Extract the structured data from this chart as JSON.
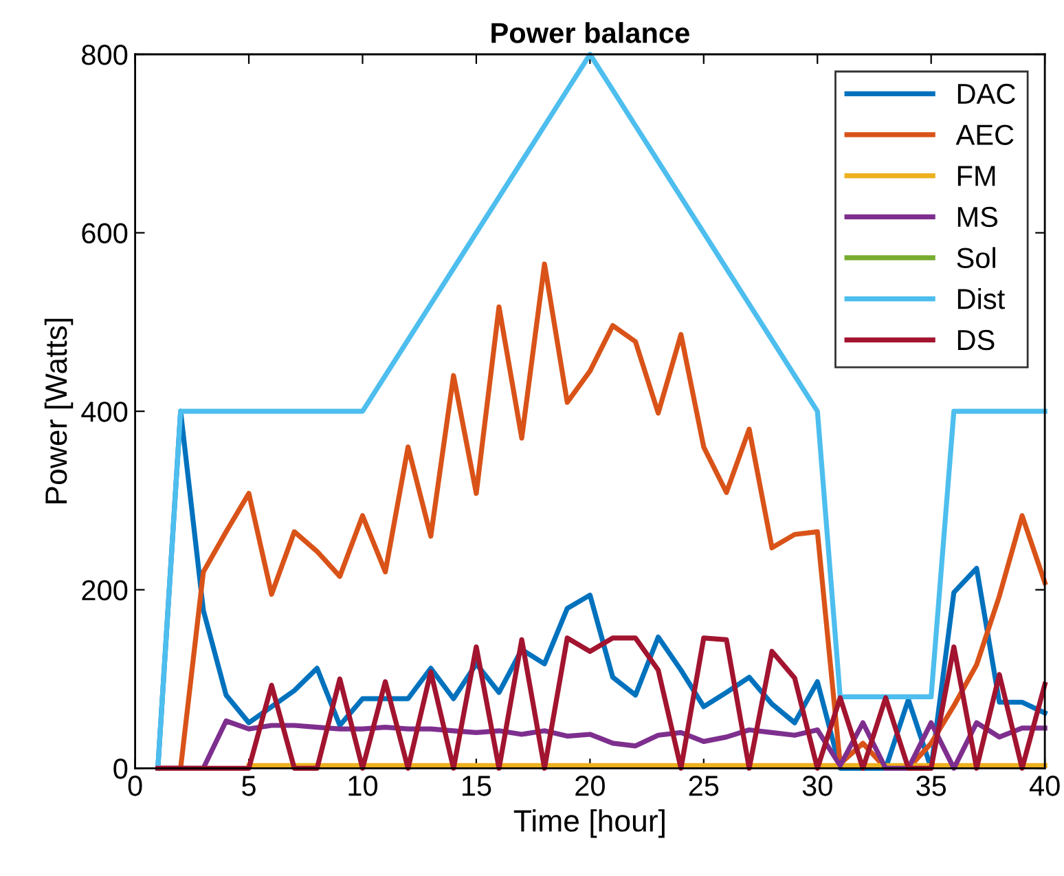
{
  "chart_data": {
    "type": "line",
    "title": "Power balance",
    "xlabel": "Time [hour]",
    "ylabel": "Power [Watts]",
    "x": [
      1,
      2,
      3,
      4,
      5,
      6,
      7,
      8,
      9,
      10,
      11,
      12,
      13,
      14,
      15,
      16,
      17,
      18,
      19,
      20,
      21,
      22,
      23,
      24,
      25,
      26,
      27,
      28,
      29,
      30,
      31,
      32,
      33,
      34,
      35,
      36,
      37,
      38,
      39,
      40
    ],
    "series": [
      {
        "name": "DAC",
        "color": "#0072bd",
        "values": [
          0,
          400,
          177,
          82,
          51,
          69,
          87,
          112,
          48,
          78,
          78,
          78,
          112,
          78,
          117,
          85,
          133,
          117,
          179,
          194,
          102,
          82,
          147,
          110,
          69,
          85,
          102,
          72,
          51,
          97,
          0,
          0,
          0,
          77,
          0,
          197,
          224,
          74,
          74,
          62
        ]
      },
      {
        "name": "AEC",
        "color": "#d95319",
        "values": [
          0,
          0,
          220,
          265,
          308,
          195,
          265,
          243,
          215,
          283,
          220,
          360,
          260,
          440,
          308,
          517,
          370,
          565,
          410,
          445,
          496,
          478,
          398,
          486,
          360,
          309,
          380,
          247,
          262,
          265,
          5,
          28,
          0,
          0,
          28,
          70,
          116,
          193,
          283,
          208
        ]
      },
      {
        "name": "FM",
        "color": "#edb120",
        "values": [
          null,
          null,
          null,
          null,
          3,
          3,
          3,
          3,
          3,
          3,
          3,
          3,
          3,
          3,
          3,
          3,
          3,
          3,
          3,
          3,
          3,
          3,
          3,
          3,
          3,
          3,
          3,
          3,
          3,
          3,
          3,
          3,
          3,
          3,
          3,
          3,
          3,
          3,
          3,
          3
        ]
      },
      {
        "name": "MS",
        "color": "#7e2f8e",
        "values": [
          0,
          0,
          0,
          53,
          44,
          48,
          48,
          46,
          44,
          44,
          46,
          44,
          44,
          42,
          40,
          42,
          38,
          42,
          36,
          38,
          28,
          25,
          37,
          40,
          30,
          35,
          43,
          40,
          37,
          43,
          3,
          51,
          0,
          0,
          51,
          0,
          51,
          35,
          45,
          45
        ]
      },
      {
        "name": "Sol",
        "color": "#77ac30",
        "values": [
          null,
          null,
          null,
          null,
          null,
          null,
          null,
          null,
          null,
          null,
          null,
          null,
          null,
          null,
          null,
          null,
          null,
          null,
          null,
          null,
          null,
          null,
          null,
          null,
          null,
          null,
          null,
          null,
          null,
          null,
          null,
          null,
          null,
          null,
          null,
          null,
          null,
          null,
          null,
          null
        ]
      },
      {
        "name": "Dist",
        "color": "#4dbeee",
        "values": [
          0,
          400,
          400,
          400,
          400,
          400,
          400,
          400,
          400,
          400,
          440,
          480,
          520,
          560,
          600,
          640,
          680,
          720,
          760,
          800,
          760,
          720,
          680,
          640,
          600,
          560,
          520,
          480,
          440,
          400,
          80,
          80,
          80,
          80,
          80,
          400,
          400,
          400,
          400,
          400
        ]
      },
      {
        "name": "DS",
        "color": "#a2142f",
        "values": [
          0,
          0,
          0,
          0,
          0,
          93,
          0,
          0,
          100,
          0,
          97,
          0,
          108,
          0,
          136,
          0,
          144,
          0,
          146,
          131,
          146,
          146,
          110,
          0,
          146,
          144,
          0,
          131,
          101,
          0,
          79,
          0,
          79,
          0,
          0,
          136,
          0,
          105,
          0,
          94
        ]
      }
    ],
    "xlim": [
      0,
      40
    ],
    "xticks": [
      0,
      5,
      10,
      15,
      20,
      25,
      30,
      35,
      40
    ],
    "ylim": [
      0,
      800
    ],
    "yticks": [
      0,
      200,
      400,
      600,
      800
    ],
    "grid": false,
    "legend": "top right",
    "line_style": "solid",
    "marker": "none"
  }
}
